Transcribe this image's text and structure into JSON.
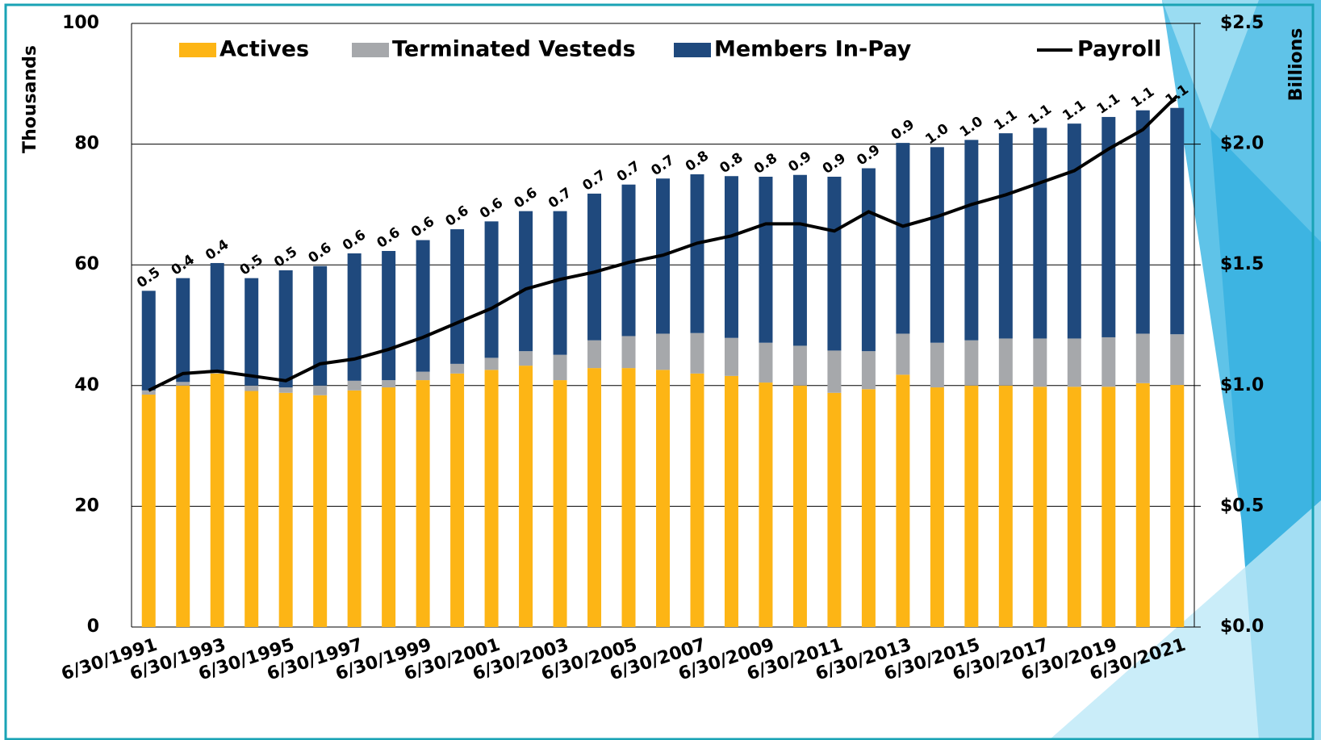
{
  "chart_data": {
    "type": "bar",
    "categories": [
      "6/30/1991",
      null,
      "6/30/1993",
      null,
      "6/30/1995",
      null,
      "6/30/1997",
      null,
      "6/30/1999",
      null,
      "6/30/2001",
      null,
      "6/30/2003",
      null,
      "6/30/2005",
      null,
      "6/30/2007",
      null,
      "6/30/2009",
      null,
      "6/30/2011",
      null,
      "6/30/2013",
      null,
      "6/30/2015",
      null,
      "6/30/2017",
      null,
      "6/30/2019",
      null,
      "6/30/2021"
    ],
    "series": [
      {
        "name": "Actives",
        "color": "#fdb515",
        "values": [
          38.5,
          40,
          42,
          39.1,
          38.8,
          38.4,
          39.2,
          39.7,
          40.9,
          42,
          42.6,
          43.3,
          40.9,
          42.9,
          42.9,
          42.6,
          42,
          41.6,
          40.5,
          40,
          38.8,
          39.4,
          41.8,
          39.7,
          40,
          40,
          39.8,
          39.8,
          39.8,
          40.4,
          40.1
        ]
      },
      {
        "name": "Terminated Vesteds",
        "color": "#a6a8ab",
        "values": [
          0.7,
          0.6,
          0.3,
          0.9,
          0.9,
          1.6,
          1.6,
          1.2,
          1.4,
          1.6,
          2,
          2.4,
          4.2,
          4.6,
          5.3,
          6,
          6.7,
          6.3,
          6.6,
          6.6,
          7,
          6.3,
          6.8,
          7.4,
          7.5,
          7.8,
          8,
          8,
          8.2,
          8.2,
          8.4
        ]
      },
      {
        "name": "Members In-Pay",
        "color": "#1f497d",
        "values": [
          16.5,
          17.2,
          18,
          17.8,
          19.4,
          19.8,
          21.1,
          21.4,
          21.8,
          22.3,
          22.6,
          23.2,
          23.8,
          24.3,
          25.1,
          25.7,
          26.3,
          26.8,
          27.5,
          28.3,
          28.8,
          30.3,
          31.6,
          32.4,
          33.2,
          34,
          34.9,
          35.6,
          36.5,
          37,
          37.5
        ]
      },
      {
        "name": "Payroll",
        "color": "#000000",
        "axis": "y2",
        "type": "line",
        "values": [
          0.98,
          1.05,
          1.06,
          1.04,
          1.02,
          1.09,
          1.11,
          1.15,
          1.2,
          1.26,
          1.32,
          1.4,
          1.44,
          1.47,
          1.51,
          1.54,
          1.59,
          1.62,
          1.67,
          1.67,
          1.64,
          1.72,
          1.66,
          1.7,
          1.75,
          1.79,
          1.84,
          1.89,
          1.98,
          2.06,
          2.2
        ]
      }
    ],
    "annotations": [
      "0.5",
      "0.4",
      "0.4",
      "0.5",
      "0.5",
      "0.6",
      "0.6",
      "0.6",
      "0.6",
      "0.6",
      "0.6",
      "0.6",
      "0.7",
      "0.7",
      "0.7",
      "0.7",
      "0.8",
      "0.8",
      "0.8",
      "0.9",
      "0.9",
      "0.9",
      "0.9",
      "1.0",
      "1.0",
      "1.1",
      "1.1",
      "1.1",
      "1.1",
      "1.1",
      "1.1"
    ],
    "stacked": true,
    "ylabel": "Thousands",
    "y2label": "Billions",
    "ylim": [
      0,
      100
    ],
    "yticks": [
      0,
      20,
      40,
      60,
      80,
      100
    ],
    "y2lim": [
      0,
      2.5
    ],
    "y2ticks": [
      {
        "value": 0,
        "label": "$0.0"
      },
      {
        "value": 0.5,
        "label": "$0.5"
      },
      {
        "value": 1,
        "label": "$1.0"
      },
      {
        "value": 1.5,
        "label": "$1.5"
      },
      {
        "value": 2,
        "label": "$2.0"
      },
      {
        "value": 2.5,
        "label": "$2.5"
      }
    ],
    "grid": true,
    "legend": "top"
  }
}
